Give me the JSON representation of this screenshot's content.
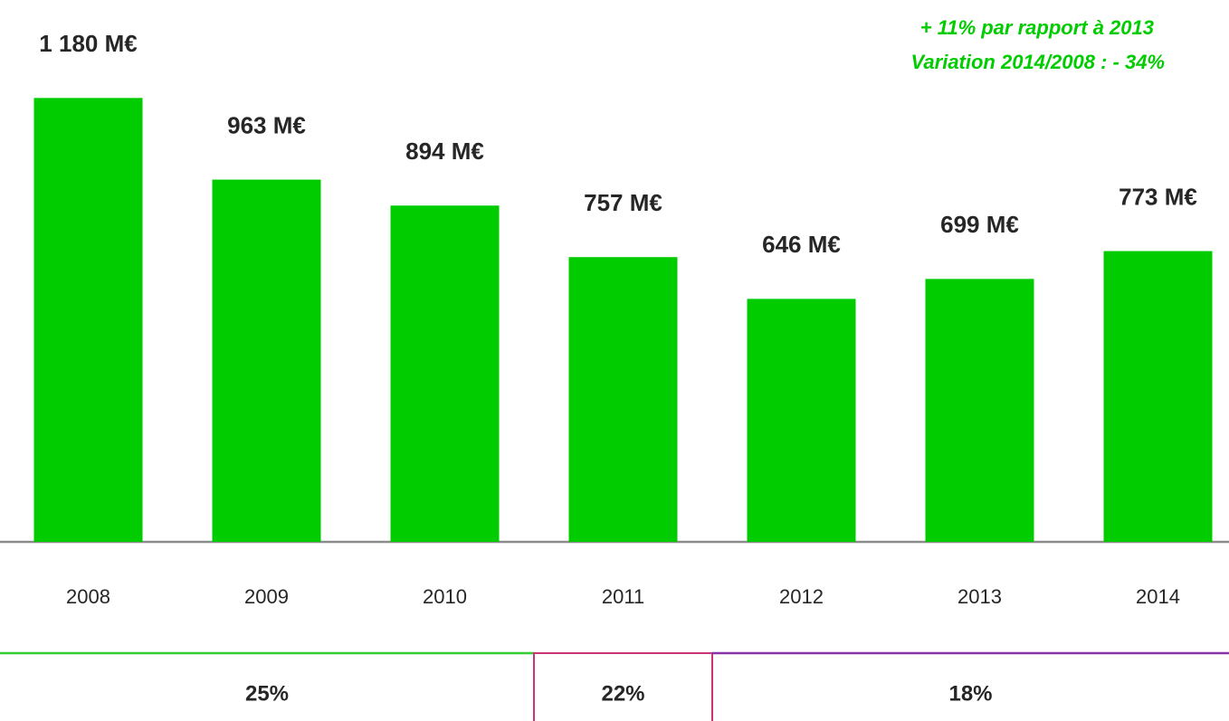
{
  "chart_data": {
    "type": "bar",
    "categories": [
      "2008",
      "2009",
      "2010",
      "2011",
      "2012",
      "2013",
      "2014"
    ],
    "values": [
      1180,
      963,
      894,
      757,
      646,
      699,
      773
    ],
    "value_labels": [
      "1 180 M€",
      "963 M€",
      "894 M€",
      "757 M€",
      "646 M€",
      "699 M€",
      "773 M€"
    ],
    "color": "#00cc00",
    "ylim": [
      0,
      1200
    ],
    "annotations": [
      "+ 11% par rapport à 2013",
      "Variation 2014/2008 : - 34%"
    ],
    "annotation_color": "#00cc00",
    "bands": [
      {
        "label": "25%",
        "color": "#33cc33"
      },
      {
        "label": "22%",
        "color": "#cc3377"
      },
      {
        "label": "18%",
        "color": "#8833aa"
      }
    ]
  }
}
